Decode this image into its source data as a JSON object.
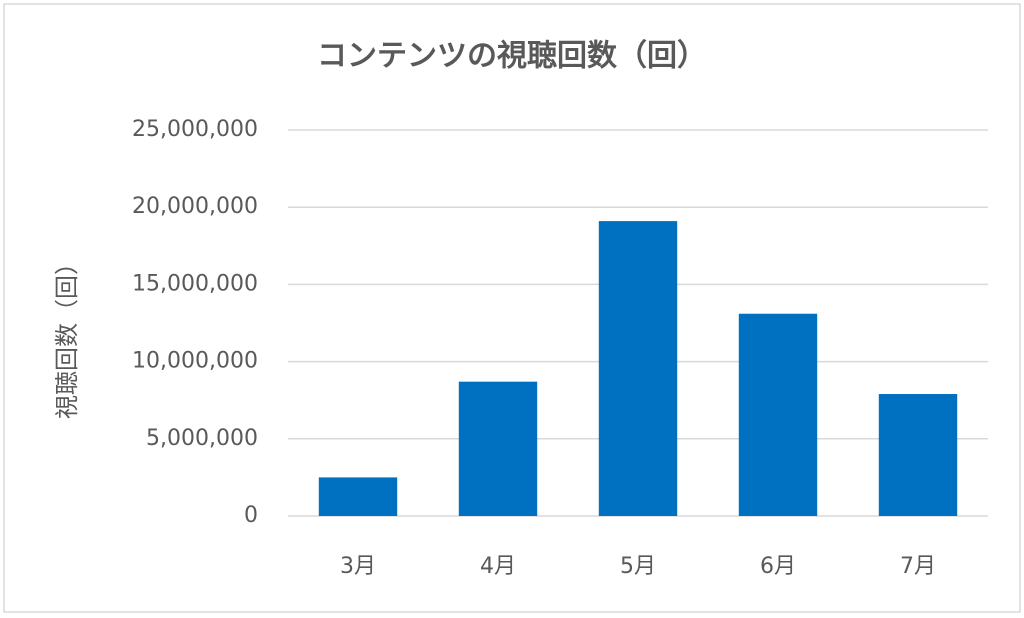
{
  "chart_data": {
    "type": "bar",
    "title": "コンテンツの視聴回数（回）",
    "y_label": "視聴回数（回）",
    "categories": [
      "3月",
      "4月",
      "5月",
      "6月",
      "7月"
    ],
    "values": [
      2500000,
      8700000,
      19100000,
      13100000,
      7900000
    ],
    "color": "#0070c0",
    "ylim": [
      0,
      25000000
    ],
    "yticks": [
      0,
      {
        "value": 5000000,
        "label": "5,000,000"
      },
      {
        "value": 10000000,
        "label": "10,000,000"
      },
      {
        "value": 15000000,
        "label": "15,000,000"
      },
      {
        "value": 20000000,
        "label": "20,000,000"
      },
      {
        "value": 25000000,
        "label": "25,000,000"
      }
    ],
    "grid": true
  }
}
